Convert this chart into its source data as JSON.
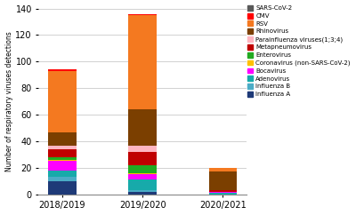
{
  "categories": [
    "2018/2019",
    "2019/2020",
    "2020/2021"
  ],
  "series": [
    {
      "label": "Influenza A",
      "color": "#1E3A78",
      "values": [
        10,
        2,
        0
      ]
    },
    {
      "label": "Influenza B",
      "color": "#4BACC6",
      "values": [
        3,
        1,
        0
      ]
    },
    {
      "label": "Adenovirus",
      "color": "#00B050",
      "values": [
        5,
        8,
        1
      ]
    },
    {
      "label": "Bocavirus",
      "color": "#FF00FF",
      "values": [
        7,
        4,
        1
      ]
    },
    {
      "label": "Coronavirus (non-SARS-CoV-2)",
      "color": "#FFC000",
      "values": [
        1,
        1,
        0
      ]
    },
    {
      "label": "Enterovirus",
      "color": "#00B050",
      "values": [
        2,
        6,
        0
      ]
    },
    {
      "label": "Metapneumovirus",
      "color": "#C00000",
      "values": [
        6,
        10,
        1
      ]
    },
    {
      "label": "Parainfluenza viruses(1;3;4)",
      "color": "#FFB6C1",
      "values": [
        3,
        5,
        0
      ]
    },
    {
      "label": "Rhinovirus",
      "color": "#7B3F00",
      "values": [
        10,
        27,
        14
      ]
    },
    {
      "label": "RSV",
      "color": "#F47920",
      "values": [
        46,
        71,
        3
      ]
    },
    {
      "label": "CMV",
      "color": "#FF0000",
      "values": [
        1,
        1,
        0
      ]
    },
    {
      "label": "SARS-CoV-2",
      "color": "#595959",
      "values": [
        0,
        0,
        0
      ]
    }
  ],
  "ylabel": "Number of respiratory viruses detections",
  "ylim": [
    0,
    140
  ],
  "yticks": [
    0,
    20,
    40,
    60,
    80,
    100,
    120,
    140
  ],
  "bar_width": 0.35,
  "background_color": "#ffffff",
  "grid_color": "#bfbfbf"
}
